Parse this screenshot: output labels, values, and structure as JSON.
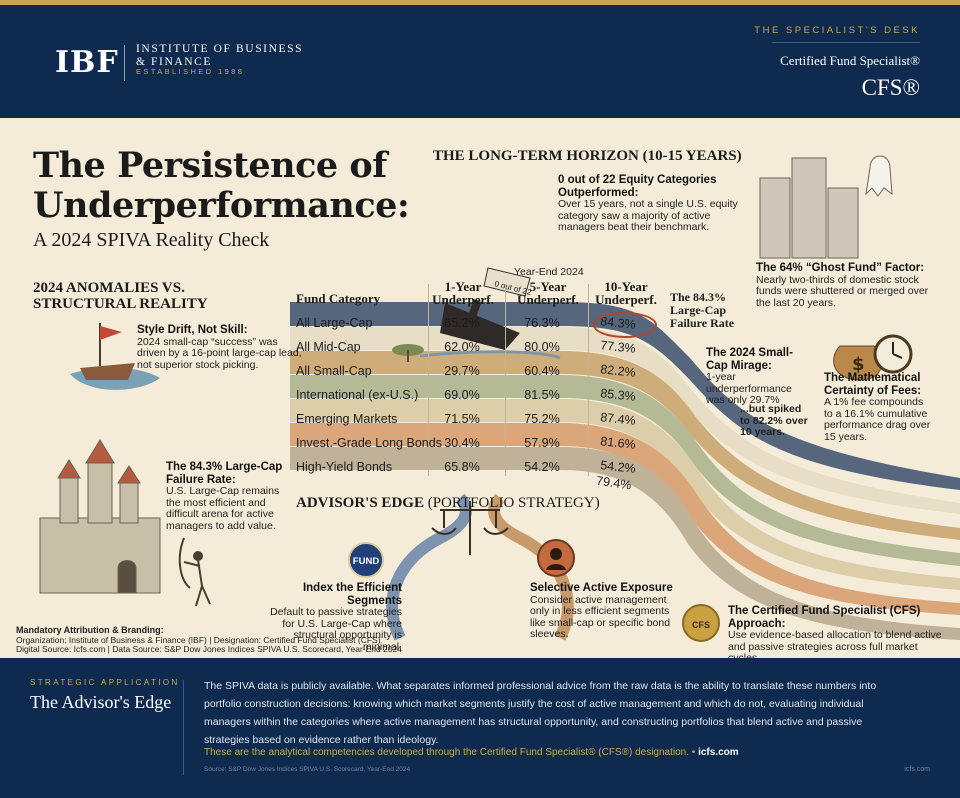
{
  "header": {
    "logo_abbr": "IBF",
    "logo_name": "INSTITUTE OF BUSINESS\n& FINANCE",
    "logo_established": "ESTABLISHED 1988",
    "desk_label": "THE SPECIALIST'S DESK",
    "designation_label": "Certified Fund Specialist®",
    "designation_abbr": "CFS®"
  },
  "infographic": {
    "title": "The Persistence of Underperformance:",
    "subtitle": "A 2024 SPIVA Reality Check",
    "long_term_heading": "THE LONG-TERM HORIZON (10-15 YEARS)",
    "ship_flag_text": "0 out of 22",
    "long_term_note": {
      "title": "0 out of 22 Equity Categories Outperformed:",
      "body": "Over 15 years, not a single U.S. equity category saw a majority of active managers beat their benchmark."
    },
    "anomalies_heading": "2024 ANOMALIES VS. STRUCTURAL REALITY",
    "style_drift": {
      "title": "Style Drift, Not Skill:",
      "body": "2024 small-cap “success” was driven by a 16-point large-cap lead, not superior stock picking."
    },
    "large_cap_castle": {
      "title": "The 84.3% Large-Cap Failure Rate:",
      "body": "U.S. Large-Cap remains the most efficient and difficult arena for active managers to add value."
    },
    "ghost_fund": {
      "title": "The 64% “Ghost Fund” Factor:",
      "body": "Nearly two-thirds of domestic stock funds were shuttered or merged over the last 20 years."
    },
    "large_cap_callout": "The 84.3% Large-Cap Failure Rate",
    "small_cap_mirage": {
      "title": "The 2024 Small-Cap Mirage:",
      "body": "1-year underperformance was only 29.7%"
    },
    "small_cap_spike": "...but spiked to 82.2% over 10 years.",
    "fees": {
      "title": "The Mathematical Certainty of Fees:",
      "body": "A 1% fee compounds to a 16.1% cumulative performance drag over 15 years."
    },
    "table": {
      "year_end": "Year-End 2024",
      "col_category": "Fund Category",
      "col_1y": "1-Year Underperf.",
      "col_5y": "5-Year Underperf.",
      "col_10y": "10-Year Underperf.",
      "rows": [
        {
          "category": "All Large-Cap",
          "y1": "65.2%",
          "y5": "76.3%",
          "y10": "84.3%",
          "band": "#3a4f6e"
        },
        {
          "category": "All Mid-Cap",
          "y1": "62.0%",
          "y5": "80.0%",
          "y10": "77.3%",
          "band": "#e9dfc6"
        },
        {
          "category": "All Small-Cap",
          "y1": "29.7%",
          "y5": "60.4%",
          "y10": "82.2%",
          "band": "#c9a36a"
        },
        {
          "category": "International (ex-U.S.)",
          "y1": "69.0%",
          "y5": "81.5%",
          "y10": "85.3%",
          "band": "#a9b28a"
        },
        {
          "category": "Emerging Markets",
          "y1": "71.5%",
          "y5": "75.2%",
          "y10": "87.4%",
          "band": "#d9c9a2"
        },
        {
          "category": "Invest.-Grade Long Bonds",
          "y1": "30.4%",
          "y5": "57.9%",
          "y10": "81.6%",
          "band": "#d79a6a"
        },
        {
          "category": "High-Yield Bonds",
          "y1": "65.8%",
          "y5": "54.2%",
          "y10": "54.2%",
          "band": "#b7a98d"
        }
      ],
      "extra_10y": "79.4%"
    },
    "advisor_edge_heading": "ADVISOR'S EDGE",
    "advisor_edge_heading_suffix": "(PORTFOLIO STRATEGY)",
    "fund_badge": "FUND",
    "index_segments": {
      "title": "Index the Efficient Segments",
      "body": "Default to passive strategies for U.S. Large-Cap where structural opportunity is minimal."
    },
    "selective_active": {
      "title": "Selective Active Exposure",
      "body": "Consider active management only in less efficient segments like small-cap or specific bond sleeves."
    },
    "cfs_seal": "CFS",
    "cfs_approach": {
      "title": "The Certified Fund Specialist (CFS) Approach:",
      "body": "Use evidence-based allocation to blend active and passive strategies across full market cycles."
    },
    "attribution": {
      "title": "Mandatory Attribution & Branding:",
      "line1": "Organization: Institute of Business & Finance (IBF) | Designation: Certified Fund Specialist (CFS)",
      "line2": "Digital Source: Icfs.com | Data Source: S&P Dow Jones Indices SPIVA U.S. Scorecard, Year-End 2024"
    }
  },
  "footer": {
    "kicker": "STRATEGIC APPLICATION",
    "title": "The Advisor's Edge",
    "body": "The SPIVA data is publicly available. What separates informed professional advice from the raw data is the ability to translate these numbers into portfolio construction decisions: knowing which market segments justify the cost of active management and which do not, evaluating individual managers within the categories where active management has structural opportunity, and constructing portfolios that blend active and passive strategies based on evidence rather than ideology.",
    "cta": "These are the analytical competencies developed through the Certified Fund Specialist® (CFS®) designation. •",
    "cta_link": "icfs.com",
    "source": "Source: S&P Dow Jones Indices SPIVA U.S. Scorecard, Year-End 2024",
    "site": "icfs.com"
  }
}
